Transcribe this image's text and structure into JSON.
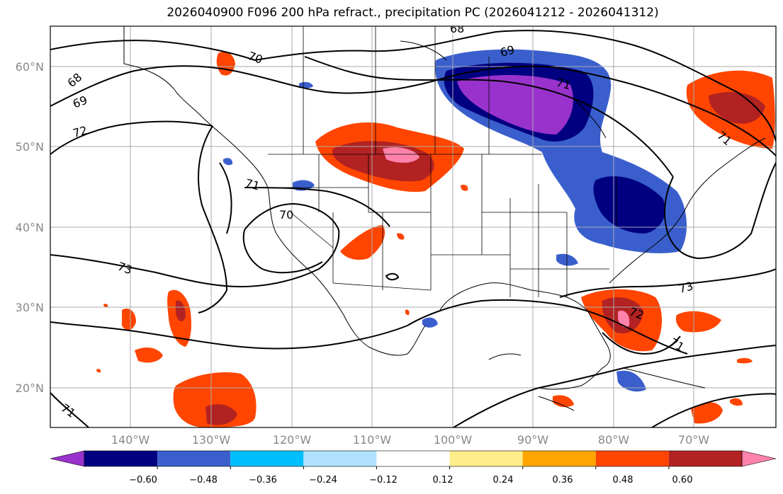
{
  "title": "2026040900 F096 200 hPa refract., precipitation PC (2026041212 - 2026041312)",
  "lat_labels": [
    "60°N",
    "50°N",
    "40°N",
    "30°N",
    "20°N"
  ],
  "lon_labels": [
    "140°W",
    "130°W",
    "120°W",
    "110°W",
    "100°W",
    "90°W",
    "80°W",
    "70°W"
  ],
  "contour_labels": [
    "68",
    "69",
    "70",
    "71",
    "72",
    "73"
  ],
  "colorbar": {
    "ticks": [
      "−0.60",
      "−0.48",
      "−0.36",
      "−0.24",
      "−0.12",
      "0.12",
      "0.24",
      "0.36",
      "0.48",
      "0.60"
    ],
    "colors": [
      "#9932cc",
      "#000080",
      "#3a5fcd",
      "#00bfff",
      "#b0e2ff",
      "#ffffff",
      "#ffec8b",
      "#ffa500",
      "#ff4500",
      "#b22222",
      "#ff82ab"
    ]
  }
}
